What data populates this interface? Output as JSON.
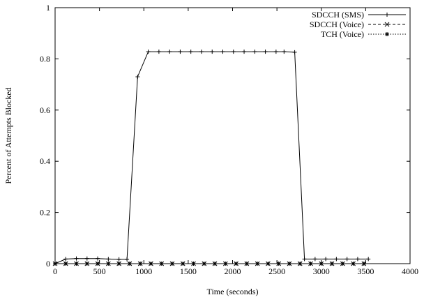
{
  "chart_data": {
    "type": "line",
    "title": "",
    "xlabel": "Time (seconds)",
    "ylabel": "Percent of Attempts Blocked",
    "xlim": [
      0,
      4000
    ],
    "ylim": [
      0,
      1
    ],
    "xticks": [
      0,
      500,
      1000,
      1500,
      2000,
      2500,
      3000,
      3500,
      4000
    ],
    "yticks": [
      0,
      0.2,
      0.4,
      0.6,
      0.8,
      1
    ],
    "xtick_labels": [
      "0",
      "500",
      "1000",
      "1500",
      "2000",
      "2500",
      "3000",
      "3500",
      "4000"
    ],
    "ytick_labels": [
      "0",
      "0.2",
      "0.4",
      "0.6",
      "0.8",
      "1"
    ],
    "grid": false,
    "legend_position": "top-right",
    "series": [
      {
        "name": "SDCCH (SMS)",
        "marker": "+",
        "line_style": "solid",
        "x": [
          0,
          120,
          240,
          360,
          480,
          600,
          720,
          810,
          930,
          1050,
          1170,
          1290,
          1410,
          1530,
          1650,
          1770,
          1890,
          2010,
          2130,
          2250,
          2370,
          2490,
          2580,
          2700,
          2810,
          2930,
          3050,
          3170,
          3290,
          3410,
          3530
        ],
        "y": [
          0,
          0.018,
          0.02,
          0.02,
          0.02,
          0.018,
          0.017,
          0.017,
          0.73,
          0.828,
          0.828,
          0.828,
          0.828,
          0.828,
          0.828,
          0.828,
          0.828,
          0.828,
          0.828,
          0.828,
          0.828,
          0.828,
          0.828,
          0.826,
          0.018,
          0.018,
          0.018,
          0.018,
          0.018,
          0.018,
          0.018
        ]
      },
      {
        "name": "SDCCH (Voice)",
        "marker": "x",
        "line_style": "dashed",
        "x": [
          0,
          120,
          240,
          360,
          480,
          600,
          720,
          840,
          960,
          1080,
          1200,
          1320,
          1440,
          1560,
          1680,
          1800,
          1920,
          2040,
          2160,
          2280,
          2400,
          2520,
          2640,
          2760,
          2880,
          3000,
          3120,
          3240,
          3360,
          3480
        ],
        "y": [
          0,
          0,
          0,
          0,
          0,
          0,
          0,
          0,
          0,
          0,
          0,
          0,
          0,
          0,
          0,
          0,
          0,
          0,
          0,
          0,
          0,
          0,
          0,
          0,
          0,
          0,
          0,
          0,
          0,
          0
        ]
      },
      {
        "name": "TCH (Voice)",
        "marker": "*",
        "line_style": "dotted",
        "x": [
          0,
          120,
          240,
          360,
          480,
          600,
          720,
          840,
          960,
          1080,
          1200,
          1320,
          1440,
          1560,
          1680,
          1800,
          1920,
          2040,
          2160,
          2280,
          2400,
          2520,
          2640,
          2760,
          2880,
          3000,
          3120,
          3240,
          3360,
          3480
        ],
        "y": [
          0,
          0,
          0,
          0,
          0,
          0,
          0,
          0,
          0,
          0,
          0,
          0,
          0,
          0,
          0,
          0,
          0,
          0,
          0,
          0,
          0,
          0,
          0,
          0,
          0,
          0,
          0,
          0,
          0,
          0
        ]
      }
    ]
  }
}
